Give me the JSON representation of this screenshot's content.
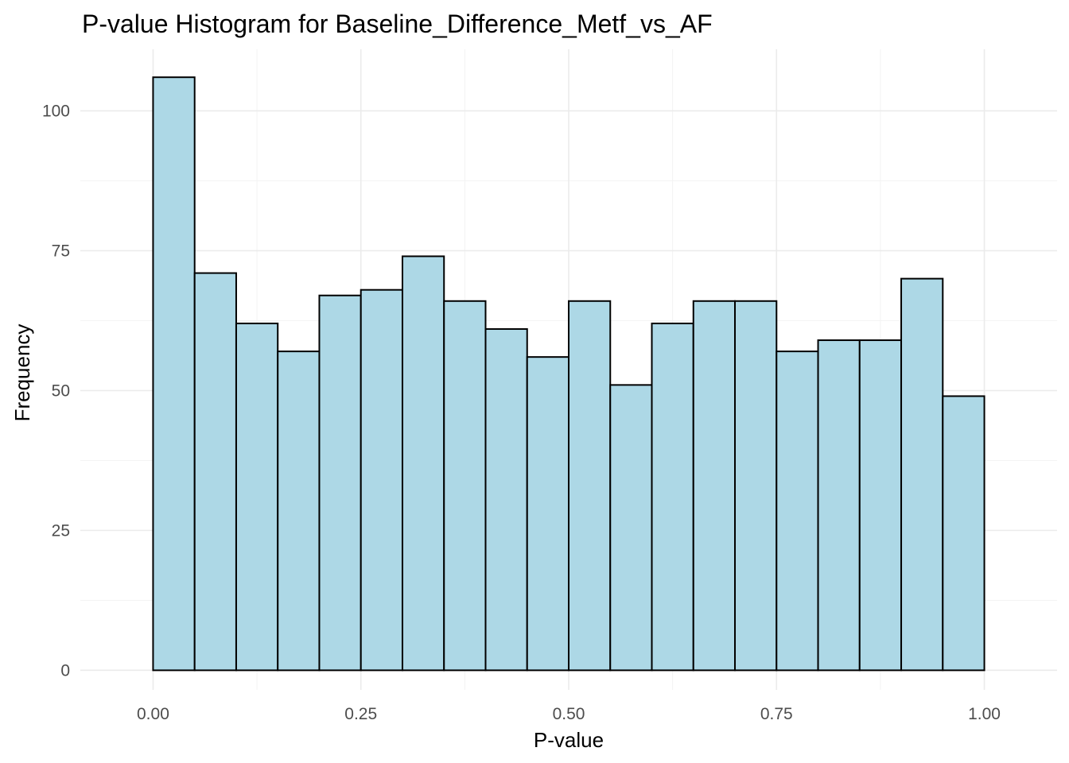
{
  "chart_data": {
    "type": "bar",
    "title": "P-value Histogram for Baseline_Difference_Metf_vs_AF",
    "xlabel": "P-value",
    "ylabel": "Frequency",
    "bin_width": 0.05,
    "bins": [
      {
        "start": 0.0,
        "end": 0.05,
        "count": 106
      },
      {
        "start": 0.05,
        "end": 0.1,
        "count": 71
      },
      {
        "start": 0.1,
        "end": 0.15,
        "count": 62
      },
      {
        "start": 0.15,
        "end": 0.2,
        "count": 57
      },
      {
        "start": 0.2,
        "end": 0.25,
        "count": 67
      },
      {
        "start": 0.25,
        "end": 0.3,
        "count": 68
      },
      {
        "start": 0.3,
        "end": 0.35,
        "count": 74
      },
      {
        "start": 0.35,
        "end": 0.4,
        "count": 66
      },
      {
        "start": 0.4,
        "end": 0.45,
        "count": 61
      },
      {
        "start": 0.45,
        "end": 0.5,
        "count": 56
      },
      {
        "start": 0.5,
        "end": 0.55,
        "count": 66
      },
      {
        "start": 0.55,
        "end": 0.6,
        "count": 51
      },
      {
        "start": 0.6,
        "end": 0.65,
        "count": 62
      },
      {
        "start": 0.65,
        "end": 0.7,
        "count": 66
      },
      {
        "start": 0.7,
        "end": 0.75,
        "count": 66
      },
      {
        "start": 0.75,
        "end": 0.8,
        "count": 57
      },
      {
        "start": 0.8,
        "end": 0.85,
        "count": 59
      },
      {
        "start": 0.85,
        "end": 0.9,
        "count": 59
      },
      {
        "start": 0.9,
        "end": 0.95,
        "count": 70
      },
      {
        "start": 0.95,
        "end": 1.0,
        "count": 49
      }
    ],
    "xlim": [
      -0.0875,
      1.0875
    ],
    "ylim": [
      -3.5,
      111
    ],
    "x_ticks": [
      0.0,
      0.25,
      0.5,
      0.75,
      1.0
    ],
    "x_tick_labels": [
      "0.00",
      "0.25",
      "0.50",
      "0.75",
      "1.00"
    ],
    "y_ticks": [
      0,
      25,
      50,
      75,
      100
    ],
    "y_tick_labels": [
      "0",
      "25",
      "50",
      "75",
      "100"
    ],
    "grid": true,
    "legend": "none",
    "bar_fill": "#add8e6",
    "bar_outline": "#000000"
  }
}
